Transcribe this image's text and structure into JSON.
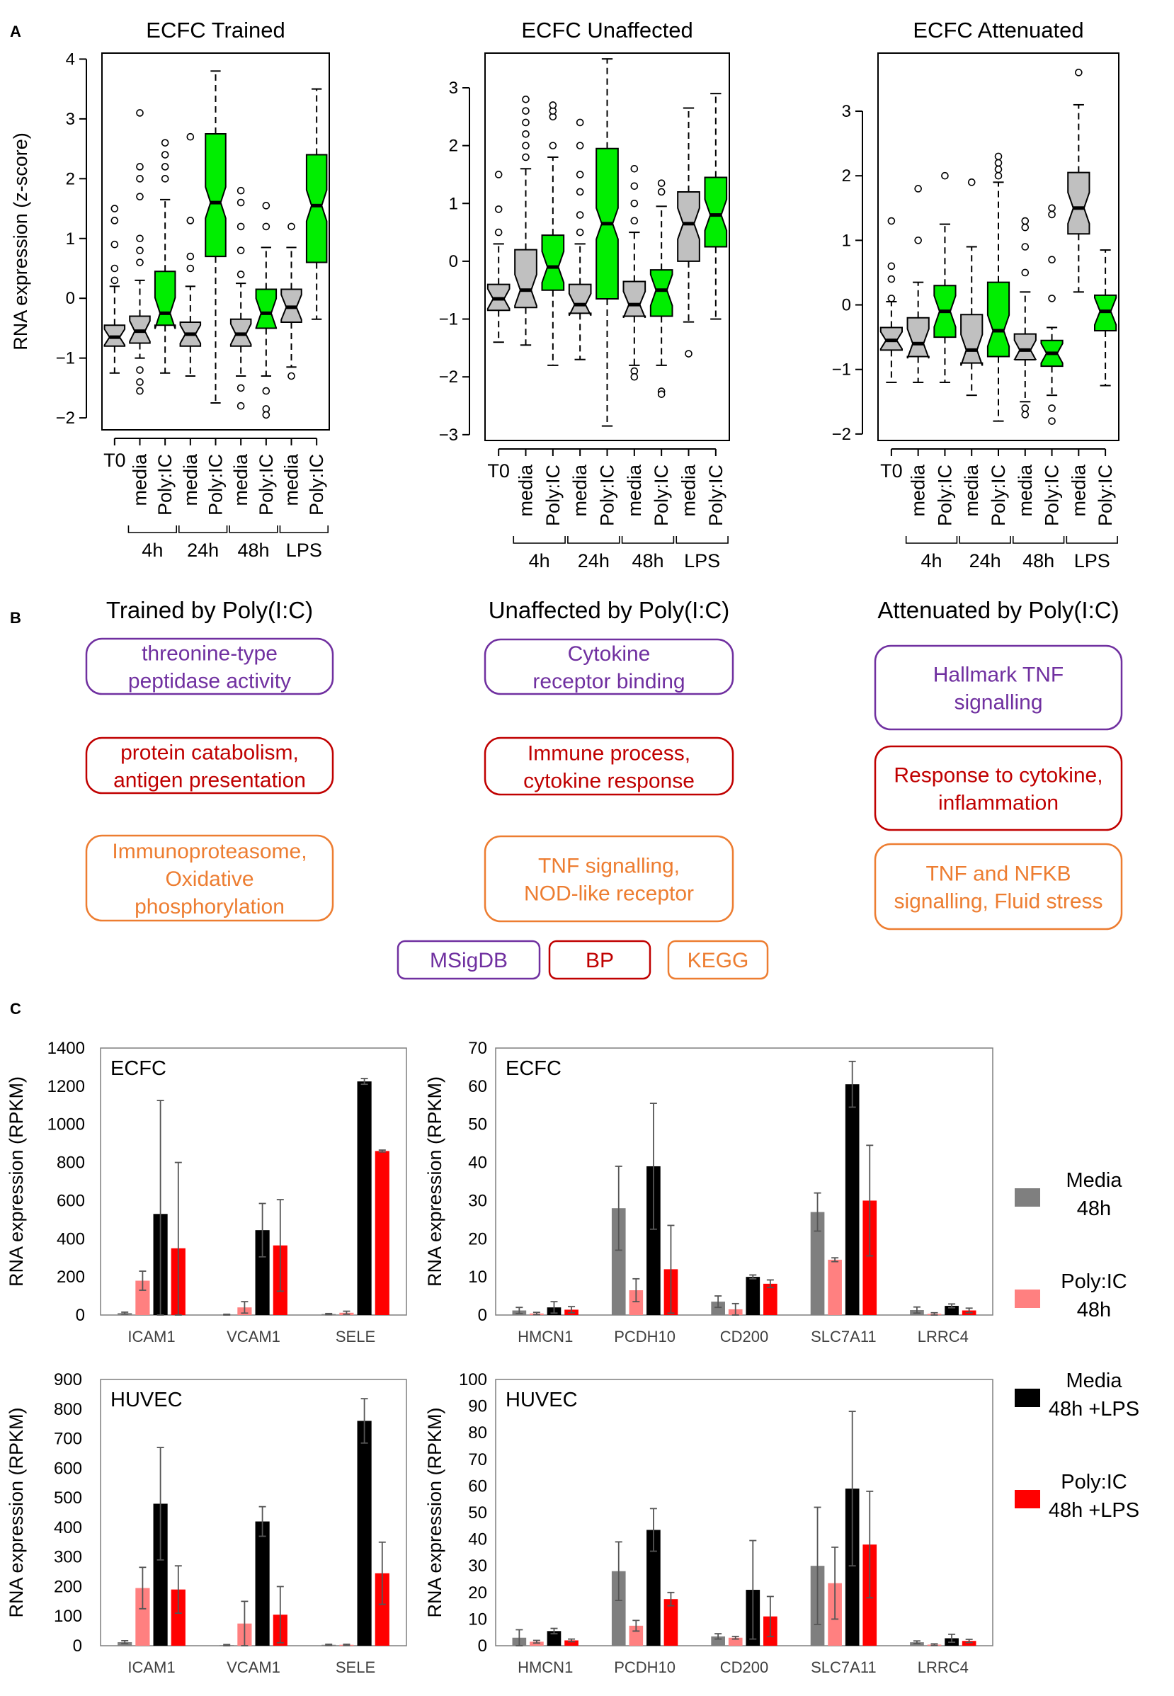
{
  "figure": {
    "panel_labels": [
      "A",
      "B",
      "C"
    ]
  },
  "colors": {
    "gray": "#c0c0c0",
    "green": "#00ee00",
    "msigdb": "#7030a0",
    "bp": "#c00000",
    "kegg": "#ed7d31",
    "media48h": "#7f7f7f",
    "polyic48h": "#ff8080",
    "media48h_lps": "#000000",
    "polyic48h_lps": "#ff0000"
  },
  "panelA": {
    "ylabel": "RNA expression (z-score)",
    "x_labels": [
      "T0",
      "media",
      "Poly:IC",
      "media",
      "Poly:IC",
      "media",
      "Poly:IC",
      "media",
      "Poly:IC"
    ],
    "group_labels": [
      "4h",
      "24h",
      "48h",
      "LPS"
    ]
  },
  "panelB": {
    "columns": [
      {
        "title": "Trained by Poly(I:C)",
        "msigdb": [
          "threonine-type",
          "peptidase activity"
        ],
        "bp": [
          "protein catabolism,",
          "antigen presentation"
        ],
        "kegg": [
          "Immunoproteasome,",
          "Oxidative",
          "phosphorylation"
        ]
      },
      {
        "title": "Unaffected by Poly(I:C)",
        "msigdb": [
          "Cytokine",
          "receptor binding"
        ],
        "bp": [
          "Immune process,",
          "cytokine response"
        ],
        "kegg": [
          "TNF signalling,",
          "NOD-like receptor"
        ]
      },
      {
        "title": "Attenuated by Poly(I:C)",
        "msigdb": [
          "Hallmark TNF",
          "signalling"
        ],
        "bp": [
          "Response to cytokine,",
          "inflammation"
        ],
        "kegg": [
          "TNF and NFKB",
          "signalling, Fluid stress"
        ]
      }
    ],
    "legend": [
      "MSigDB",
      "BP",
      "KEGG"
    ]
  },
  "panelC": {
    "ylabel": "RNA expression (RPKM)",
    "legend": [
      {
        "label": [
          "Media",
          "48h"
        ],
        "color": "#7f7f7f"
      },
      {
        "label": [
          "Poly:IC",
          "48h"
        ],
        "color": "#ff8080"
      },
      {
        "label": [
          "Media",
          "48h +LPS"
        ],
        "color": "#000000"
      },
      {
        "label": [
          "Poly:IC",
          "48h +LPS"
        ],
        "color": "#ff0000"
      }
    ]
  },
  "chart_data": [
    {
      "type": "box",
      "title": "ECFC Trained",
      "ylabel": "RNA expression (z-score)",
      "ylim": [
        -2.2,
        4.1
      ],
      "yticks": [
        -2,
        -1,
        0,
        1,
        2,
        3,
        4
      ],
      "categories": [
        "T0",
        "media 4h",
        "Poly:IC 4h",
        "media 24h",
        "Poly:IC 24h",
        "media 48h",
        "Poly:IC 48h",
        "media LPS",
        "Poly:IC LPS"
      ],
      "colors": [
        "gray",
        "gray",
        "green",
        "gray",
        "green",
        "gray",
        "green",
        "gray",
        "green"
      ],
      "boxes": [
        {
          "q1": -0.8,
          "med": -0.65,
          "q3": -0.45,
          "wlo": -1.25,
          "whi": 0.2,
          "out": [
            0.3,
            0.5,
            0.9,
            1.3,
            1.5
          ]
        },
        {
          "q1": -0.75,
          "med": -0.55,
          "q3": -0.3,
          "wlo": -1.0,
          "whi": 0.3,
          "out": [
            0.6,
            0.8,
            1.0,
            1.7,
            2.0,
            2.2,
            3.1,
            -1.2,
            -1.4,
            -1.55
          ]
        },
        {
          "q1": -0.45,
          "med": -0.25,
          "q3": 0.45,
          "wlo": -1.25,
          "whi": 1.65,
          "out": [
            2.0,
            2.2,
            2.4,
            2.6
          ]
        },
        {
          "q1": -0.8,
          "med": -0.6,
          "q3": -0.4,
          "wlo": -1.3,
          "whi": 0.2,
          "out": [
            0.5,
            0.7,
            1.3,
            2.7
          ]
        },
        {
          "q1": 0.7,
          "med": 1.6,
          "q3": 2.75,
          "wlo": -1.75,
          "whi": 3.8,
          "out": []
        },
        {
          "q1": -0.8,
          "med": -0.6,
          "q3": -0.35,
          "wlo": -1.3,
          "whi": 0.25,
          "out": [
            0.4,
            0.8,
            1.2,
            1.6,
            1.8,
            -1.5,
            -1.8
          ]
        },
        {
          "q1": -0.5,
          "med": -0.25,
          "q3": 0.15,
          "wlo": -1.3,
          "whi": 0.85,
          "out": [
            1.2,
            1.55,
            -1.55,
            -1.85,
            -1.95
          ]
        },
        {
          "q1": -0.4,
          "med": -0.15,
          "q3": 0.15,
          "wlo": -1.15,
          "whi": 0.85,
          "out": [
            1.2,
            -1.3
          ]
        },
        {
          "q1": 0.6,
          "med": 1.55,
          "q3": 2.4,
          "wlo": -0.35,
          "whi": 3.5,
          "out": []
        }
      ]
    },
    {
      "type": "box",
      "title": "ECFC Unaffected",
      "ylabel": "",
      "ylim": [
        -3.1,
        3.6
      ],
      "yticks": [
        -3,
        -2,
        -1,
        0,
        1,
        2,
        3
      ],
      "categories": [
        "T0",
        "media 4h",
        "Poly:IC 4h",
        "media 24h",
        "Poly:IC 24h",
        "media 48h",
        "Poly:IC 48h",
        "media LPS",
        "Poly:IC LPS"
      ],
      "colors": [
        "gray",
        "gray",
        "green",
        "gray",
        "green",
        "gray",
        "green",
        "gray",
        "green"
      ],
      "boxes": [
        {
          "q1": -0.85,
          "med": -0.65,
          "q3": -0.4,
          "wlo": -1.4,
          "whi": 0.3,
          "out": [
            0.5,
            0.9,
            1.5
          ]
        },
        {
          "q1": -0.8,
          "med": -0.5,
          "q3": 0.2,
          "wlo": -1.45,
          "whi": 1.6,
          "out": [
            1.8,
            2.0,
            2.2,
            2.4,
            2.6,
            2.8
          ]
        },
        {
          "q1": -0.5,
          "med": -0.1,
          "q3": 0.45,
          "wlo": -1.8,
          "whi": 1.8,
          "out": [
            2.0,
            2.5,
            2.6,
            2.7
          ]
        },
        {
          "q1": -0.9,
          "med": -0.75,
          "q3": -0.4,
          "wlo": -1.7,
          "whi": 0.3,
          "out": [
            0.5,
            0.8,
            1.2,
            1.5,
            2.0,
            2.4
          ]
        },
        {
          "q1": -0.65,
          "med": 0.65,
          "q3": 1.95,
          "wlo": -2.85,
          "whi": 3.5,
          "out": []
        },
        {
          "q1": -0.95,
          "med": -0.75,
          "q3": -0.35,
          "wlo": -1.8,
          "whi": 0.5,
          "out": [
            0.7,
            1.0,
            1.3,
            1.6,
            -1.9,
            -2.0
          ]
        },
        {
          "q1": -0.95,
          "med": -0.5,
          "q3": -0.15,
          "wlo": -1.8,
          "whi": 0.95,
          "out": [
            1.2,
            1.35,
            -2.25,
            -2.3
          ]
        },
        {
          "q1": 0.0,
          "med": 0.65,
          "q3": 1.2,
          "wlo": -1.05,
          "whi": 2.65,
          "out": [
            -1.6
          ]
        },
        {
          "q1": 0.25,
          "med": 0.8,
          "q3": 1.45,
          "wlo": -1.0,
          "whi": 2.9,
          "out": []
        }
      ]
    },
    {
      "type": "box",
      "title": "ECFC Attenuated",
      "ylabel": "",
      "ylim": [
        -2.1,
        3.9
      ],
      "yticks": [
        -2,
        -1,
        0,
        1,
        2,
        3
      ],
      "categories": [
        "T0",
        "media 4h",
        "Poly:IC 4h",
        "media 24h",
        "Poly:IC 24h",
        "media 48h",
        "Poly:IC 48h",
        "media LPS",
        "Poly:IC LPS"
      ],
      "colors": [
        "gray",
        "gray",
        "green",
        "gray",
        "green",
        "gray",
        "green",
        "gray",
        "green"
      ],
      "boxes": [
        {
          "q1": -0.7,
          "med": -0.55,
          "q3": -0.35,
          "wlo": -1.2,
          "whi": 0.05,
          "out": [
            0.1,
            0.4,
            0.6,
            1.3
          ]
        },
        {
          "q1": -0.8,
          "med": -0.6,
          "q3": -0.2,
          "wlo": -1.2,
          "whi": 0.35,
          "out": [
            1.0,
            1.8
          ]
        },
        {
          "q1": -0.5,
          "med": -0.1,
          "q3": 0.3,
          "wlo": -1.2,
          "whi": 1.25,
          "out": [
            2.0
          ]
        },
        {
          "q1": -0.9,
          "med": -0.7,
          "q3": -0.15,
          "wlo": -1.4,
          "whi": 0.9,
          "out": [
            1.9
          ]
        },
        {
          "q1": -0.8,
          "med": -0.4,
          "q3": 0.35,
          "wlo": -1.8,
          "whi": 1.9,
          "out": [
            2.0,
            2.1,
            2.2,
            2.3
          ]
        },
        {
          "q1": -0.85,
          "med": -0.7,
          "q3": -0.45,
          "wlo": -1.5,
          "whi": 0.2,
          "out": [
            0.5,
            0.9,
            1.2,
            1.3,
            -1.6,
            -1.7
          ]
        },
        {
          "q1": -0.95,
          "med": -0.75,
          "q3": -0.55,
          "wlo": -1.4,
          "whi": -0.35,
          "out": [
            0.1,
            0.7,
            1.4,
            1.5,
            -1.6,
            -1.8
          ]
        },
        {
          "q1": 1.1,
          "med": 1.5,
          "q3": 2.05,
          "wlo": 0.2,
          "whi": 3.1,
          "out": [
            3.6
          ]
        },
        {
          "q1": -0.4,
          "med": -0.1,
          "q3": 0.15,
          "wlo": -1.25,
          "whi": 0.85,
          "out": []
        }
      ]
    },
    {
      "type": "bar",
      "title": "ECFC",
      "ylabel": "RNA expression (RPKM)",
      "ylim": [
        0,
        1400
      ],
      "yticks": [
        0,
        200,
        400,
        600,
        800,
        1000,
        1200,
        1400
      ],
      "categories": [
        "ICAM1",
        "VCAM1",
        "SELE"
      ],
      "series": [
        {
          "name": "Media 48h",
          "values": [
            10,
            2,
            5
          ],
          "err": [
            5,
            2,
            3
          ]
        },
        {
          "name": "Poly:IC 48h",
          "values": [
            180,
            40,
            12
          ],
          "err": [
            50,
            30,
            8
          ]
        },
        {
          "name": "Media 48h +LPS",
          "values": [
            530,
            445,
            1225
          ],
          "err": [
            595,
            140,
            15
          ]
        },
        {
          "name": "Poly:IC 48h +LPS",
          "values": [
            350,
            365,
            860
          ],
          "err": [
            450,
            240,
            5
          ]
        }
      ]
    },
    {
      "type": "bar",
      "title": "ECFC",
      "ylabel": "RNA expression (RPKM)",
      "ylim": [
        0,
        70
      ],
      "yticks": [
        0,
        10,
        20,
        30,
        40,
        50,
        60,
        70
      ],
      "categories": [
        "HMCN1",
        "PCDH10",
        "CD200",
        "SLC7A11",
        "LRRC4"
      ],
      "series": [
        {
          "name": "Media 48h",
          "values": [
            1.2,
            28,
            3.5,
            27,
            1.3
          ],
          "err": [
            0.8,
            11,
            1.5,
            5,
            0.8
          ]
        },
        {
          "name": "Poly:IC 48h",
          "values": [
            0.4,
            6.5,
            1.5,
            14.5,
            0.3
          ],
          "err": [
            0.3,
            3,
            1.5,
            0.5,
            0.3
          ]
        },
        {
          "name": "Media 48h +LPS",
          "values": [
            2,
            39,
            10,
            60.5,
            2.4
          ],
          "err": [
            1.5,
            16.5,
            0.5,
            6,
            0.5
          ]
        },
        {
          "name": "Poly:IC 48h +LPS",
          "values": [
            1.4,
            12,
            8.2,
            30,
            1.2
          ],
          "err": [
            0.8,
            11.5,
            1,
            14.5,
            0.6
          ]
        }
      ]
    },
    {
      "type": "bar",
      "title": "HUVEC",
      "ylabel": "RNA expression (RPKM)",
      "ylim": [
        0,
        900
      ],
      "yticks": [
        0,
        100,
        200,
        300,
        400,
        500,
        600,
        700,
        800,
        900
      ],
      "categories": [
        "ICAM1",
        "VCAM1",
        "SELE"
      ],
      "series": [
        {
          "name": "Media 48h",
          "values": [
            12,
            2,
            3
          ],
          "err": [
            5,
            2,
            2
          ]
        },
        {
          "name": "Poly:IC 48h",
          "values": [
            195,
            75,
            3
          ],
          "err": [
            70,
            75,
            2
          ]
        },
        {
          "name": "Media 48h +LPS",
          "values": [
            480,
            420,
            760
          ],
          "err": [
            190,
            50,
            75
          ]
        },
        {
          "name": "Poly:IC 48h +LPS",
          "values": [
            190,
            105,
            245
          ],
          "err": [
            80,
            95,
            105
          ]
        }
      ]
    },
    {
      "type": "bar",
      "title": "HUVEC",
      "ylabel": "RNA expression (RPKM)",
      "ylim": [
        0,
        100
      ],
      "yticks": [
        0,
        10,
        20,
        30,
        40,
        50,
        60,
        70,
        80,
        90,
        100
      ],
      "categories": [
        "HMCN1",
        "PCDH10",
        "CD200",
        "SLC7A11",
        "LRRC4"
      ],
      "series": [
        {
          "name": "Media 48h",
          "values": [
            3,
            28,
            3.5,
            30,
            1.3
          ],
          "err": [
            3,
            11,
            1,
            22,
            0.5
          ]
        },
        {
          "name": "Poly:IC 48h",
          "values": [
            1.5,
            7.5,
            3,
            23.5,
            0.4
          ],
          "err": [
            0.5,
            2,
            0.5,
            13.5,
            0.3
          ]
        },
        {
          "name": "Media 48h +LPS",
          "values": [
            5.5,
            43.5,
            21,
            59,
            2.8
          ],
          "err": [
            1,
            8,
            18.5,
            29,
            1.5
          ]
        },
        {
          "name": "Poly:IC 48h +LPS",
          "values": [
            2,
            17.5,
            11,
            38,
            1.8
          ],
          "err": [
            0.5,
            2.5,
            7.5,
            20,
            0.6
          ]
        }
      ]
    }
  ]
}
